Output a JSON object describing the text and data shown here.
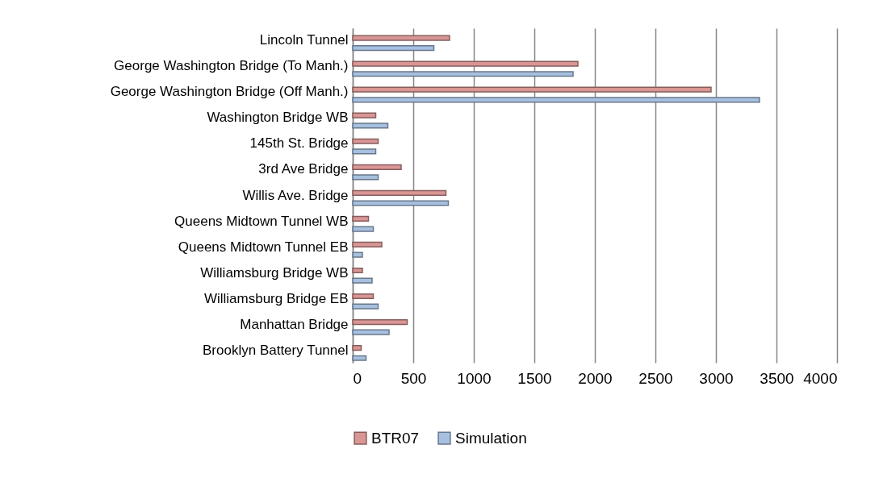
{
  "chart_data": {
    "type": "bar",
    "orientation": "horizontal",
    "categories": [
      "Lincoln Tunnel",
      "George Washington Bridge (To Manh.)",
      "George Washington Bridge (Off Manh.)",
      "Washington Bridge WB",
      "145th St. Bridge",
      "3rd Ave Bridge",
      "Willis Ave. Bridge",
      "Queens Midtown Tunnel  WB",
      "Queens Midtown Tunnel  EB",
      "Williamsburg Bridge WB",
      "Williamsburg Bridge EB",
      "Manhattan Bridge",
      "Brooklyn Battery Tunnel"
    ],
    "series": [
      {
        "name": "BTR07",
        "color": "#d99694",
        "values": [
          800,
          1860,
          2960,
          190,
          210,
          400,
          770,
          130,
          240,
          80,
          170,
          450,
          70
        ]
      },
      {
        "name": "Simulation",
        "color": "#a7c0e0",
        "values": [
          670,
          1820,
          3360,
          290,
          190,
          210,
          790,
          170,
          80,
          160,
          210,
          300,
          110
        ]
      }
    ],
    "xlim": [
      0,
      4000
    ],
    "xticks": [
      0,
      500,
      1000,
      1500,
      2000,
      2500,
      3000,
      3500,
      4000
    ],
    "grid": "x",
    "legend": "bottom"
  }
}
